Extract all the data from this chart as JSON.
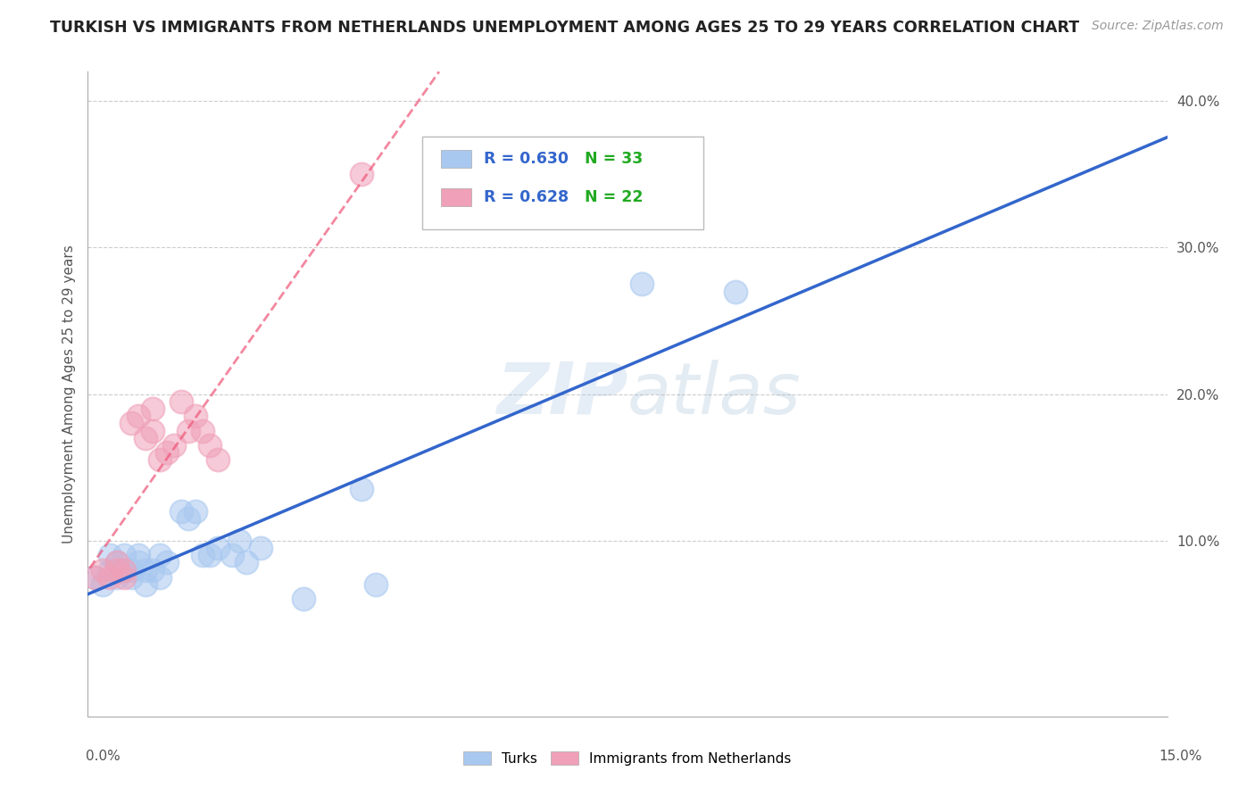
{
  "title": "TURKISH VS IMMIGRANTS FROM NETHERLANDS UNEMPLOYMENT AMONG AGES 25 TO 29 YEARS CORRELATION CHART",
  "source": "Source: ZipAtlas.com",
  "xmin": 0.0,
  "xmax": 0.15,
  "ymin": -0.02,
  "ymax": 0.42,
  "watermark_zip": "ZIP",
  "watermark_atlas": "atlas",
  "series1_name": "Turks",
  "series1_color": "#A8C8F0",
  "series1_R": "0.630",
  "series1_N": "33",
  "series2_name": "Immigrants from Netherlands",
  "series2_color": "#F0A0B8",
  "series2_R": "0.628",
  "series2_N": "22",
  "legend_R_color": "#3366CC",
  "legend_N_color": "#22AA22",
  "grid_color": "#CCCCCC",
  "background_color": "#FFFFFF",
  "trend_blue_color": "#3366CC",
  "trend_pink_color": "#EE5577",
  "turks_x": [
    0.001,
    0.002,
    0.003,
    0.003,
    0.004,
    0.004,
    0.005,
    0.005,
    0.006,
    0.006,
    0.007,
    0.007,
    0.008,
    0.008,
    0.009,
    0.01,
    0.01,
    0.011,
    0.013,
    0.014,
    0.015,
    0.016,
    0.017,
    0.018,
    0.02,
    0.021,
    0.022,
    0.024,
    0.03,
    0.038,
    0.04,
    0.077,
    0.09
  ],
  "turks_y": [
    0.075,
    0.07,
    0.08,
    0.09,
    0.075,
    0.085,
    0.08,
    0.09,
    0.075,
    0.08,
    0.085,
    0.09,
    0.08,
    0.07,
    0.08,
    0.075,
    0.09,
    0.085,
    0.12,
    0.115,
    0.12,
    0.09,
    0.09,
    0.095,
    0.09,
    0.1,
    0.085,
    0.095,
    0.06,
    0.135,
    0.07,
    0.275,
    0.27
  ],
  "immigrants_x": [
    0.001,
    0.002,
    0.003,
    0.004,
    0.004,
    0.005,
    0.005,
    0.006,
    0.007,
    0.008,
    0.009,
    0.009,
    0.01,
    0.011,
    0.012,
    0.013,
    0.014,
    0.015,
    0.016,
    0.017,
    0.018,
    0.038
  ],
  "immigrants_y": [
    0.075,
    0.08,
    0.075,
    0.08,
    0.085,
    0.075,
    0.08,
    0.18,
    0.185,
    0.17,
    0.175,
    0.19,
    0.155,
    0.16,
    0.165,
    0.195,
    0.175,
    0.185,
    0.175,
    0.165,
    0.155,
    0.35
  ]
}
